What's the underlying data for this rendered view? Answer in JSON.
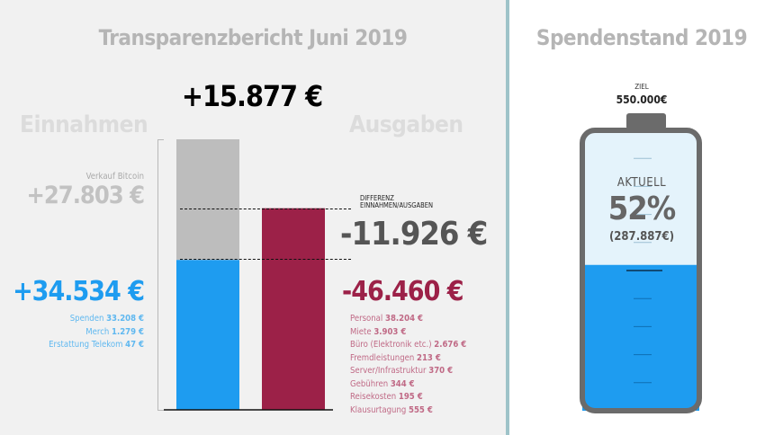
{
  "chart_data": [
    {
      "type": "bar",
      "title": "Transparenzbericht Juni 2019",
      "result": "+15.877 €",
      "difference_label": [
        "DIFFERENZ",
        "EINNAHMEN/AUSGABEN"
      ],
      "income": {
        "label": "Einnahmen",
        "bitcoin": {
          "label": "Verkauf Bitcoin",
          "value_text": "+27.803 €",
          "value": 27803
        },
        "base": {
          "value_text": "+34.534 €",
          "value": 34534,
          "items": [
            {
              "label": "Spenden",
              "value": "33.208 €"
            },
            {
              "label": "Merch",
              "value": "1.279 €"
            },
            {
              "label": "Erstattung Telekom",
              "value": "47 €"
            }
          ]
        }
      },
      "expenses": {
        "label": "Ausgaben",
        "difference_text": "-11.926 €",
        "difference": -11926,
        "total_text": "-46.460 €",
        "total": 46460,
        "items": [
          {
            "label": "Personal",
            "value": "38.204 €"
          },
          {
            "label": "Miete",
            "value": "3.903 €"
          },
          {
            "label": "Büro (Elektronik etc.)",
            "value": "2.676 €"
          },
          {
            "label": "Fremdleistungen",
            "value": "213 €"
          },
          {
            "label": "Server/Infrastruktur",
            "value": "370 €"
          },
          {
            "label": "Gebühren",
            "value": "344 €"
          },
          {
            "label": "Reisekosten",
            "value": "195 €"
          },
          {
            "label": "Klausurtagung",
            "value": "555 €"
          }
        ]
      },
      "colors": {
        "income": "#1e9cf0",
        "bitcoin": "#bdbdbd",
        "expenses": "#9c2148"
      }
    },
    {
      "type": "gauge",
      "title": "Spendenstand 2019",
      "goal_label": "ZIEL",
      "goal_text": "550.000€",
      "goal": 550000,
      "current_label": "AKTUELL",
      "percent_text": "52%",
      "percent": 52,
      "amount_text": "(287.887€)",
      "amount": 287887,
      "colors": {
        "fill": "#1e9cf0",
        "empty": "#e4f3fb",
        "frame": "#6b6b6b"
      }
    }
  ]
}
